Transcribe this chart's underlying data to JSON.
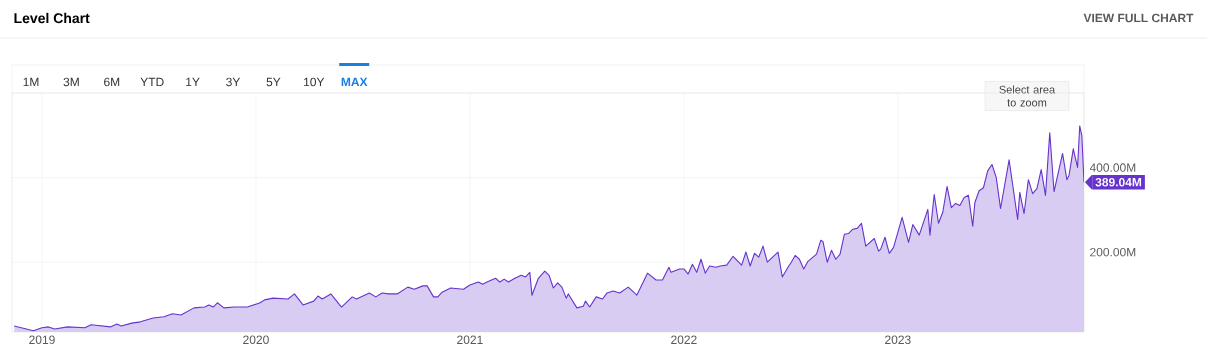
{
  "chart_data": {
    "type": "area",
    "title": "Level Chart",
    "annotations": [
      "VIEW FULL CHART",
      "1M",
      "3M",
      "6M",
      "YTD",
      "1Y",
      "3Y",
      "5Y",
      "10Y",
      "MAX",
      "Select area to zoom",
      {
        "text": "389.04M",
        "x": 2023.87,
        "y": 389.04
      }
    ],
    "x": [
      2018.87,
      2018.96,
      2019.0,
      2019.03,
      2019.06,
      2019.12,
      2019.2,
      2019.23,
      2019.32,
      2019.35,
      2019.37,
      2019.42,
      2019.46,
      2019.52,
      2019.57,
      2019.61,
      2019.65,
      2019.71,
      2019.76,
      2019.78,
      2019.8,
      2019.82,
      2019.85,
      2019.9,
      2019.96,
      2020.02,
      2020.04,
      2020.08,
      2020.15,
      2020.18,
      2020.22,
      2020.27,
      2020.29,
      2020.31,
      2020.35,
      2020.4,
      2020.45,
      2020.47,
      2020.53,
      2020.56,
      2020.59,
      2020.62,
      2020.66,
      2020.71,
      2020.74,
      2020.78,
      2020.8,
      2020.83,
      2020.85,
      2020.87,
      2020.91,
      2020.97,
      2021.0,
      2021.04,
      2021.06,
      2021.08,
      2021.12,
      2021.14,
      2021.16,
      2021.18,
      2021.21,
      2021.24,
      2021.26,
      2021.28,
      2021.29,
      2021.32,
      2021.35,
      2021.37,
      2021.39,
      2021.41,
      2021.43,
      2021.45,
      2021.46,
      2021.5,
      2021.53,
      2021.54,
      2021.56,
      2021.59,
      2021.62,
      2021.64,
      2021.67,
      2021.7,
      2021.74,
      2021.78,
      2021.83,
      2021.87,
      2021.9,
      2021.93,
      2021.94,
      2021.98,
      2022.0,
      2022.02,
      2022.04,
      2022.06,
      2022.08,
      2022.1,
      2022.12,
      2022.15,
      2022.17,
      2022.2,
      2022.23,
      2022.27,
      2022.29,
      2022.31,
      2022.33,
      2022.35,
      2022.37,
      2022.39,
      2022.44,
      2022.46,
      2022.49,
      2022.5,
      2022.52,
      2022.54,
      2022.56,
      2022.58,
      2022.62,
      2022.64,
      2022.65,
      2022.67,
      2022.69,
      2022.71,
      2022.73,
      2022.75,
      2022.77,
      2022.79,
      2022.81,
      2022.83,
      2022.85,
      2022.89,
      2022.91,
      2022.92,
      2022.94,
      2022.96,
      2022.98,
      2023.02,
      2023.05,
      2023.07,
      2023.1,
      2023.14,
      2023.15,
      2023.17,
      2023.19,
      2023.21,
      2023.23,
      2023.25,
      2023.27,
      2023.29,
      2023.31,
      2023.33,
      2023.35,
      2023.36,
      2023.38,
      2023.4,
      2023.42,
      2023.44,
      2023.46,
      2023.48,
      2023.52,
      2023.56,
      2023.57,
      2023.59,
      2023.61,
      2023.63,
      2023.65,
      2023.67,
      2023.69,
      2023.71,
      2023.73,
      2023.77,
      2023.79,
      2023.8,
      2023.82,
      2023.84,
      2023.85,
      2023.86,
      2023.87
    ],
    "values": [
      49,
      38,
      45,
      47,
      42,
      47,
      45,
      52,
      47,
      54,
      49,
      56,
      59,
      68,
      71,
      78,
      75,
      92,
      94,
      99,
      94,
      104,
      92,
      94,
      94,
      104,
      111,
      115,
      113,
      125,
      99,
      108,
      120,
      113,
      125,
      94,
      118,
      113,
      127,
      118,
      127,
      125,
      125,
      141,
      136,
      144,
      144,
      118,
      118,
      129,
      139,
      136,
      146,
      153,
      148,
      153,
      162,
      153,
      160,
      153,
      162,
      169,
      165,
      176,
      122,
      162,
      179,
      169,
      139,
      151,
      141,
      115,
      125,
      92,
      96,
      108,
      94,
      118,
      113,
      127,
      132,
      127,
      141,
      122,
      174,
      158,
      158,
      188,
      176,
      184,
      184,
      172,
      195,
      176,
      207,
      174,
      191,
      188,
      191,
      193,
      214,
      193,
      224,
      191,
      221,
      212,
      238,
      200,
      224,
      165,
      191,
      198,
      216,
      207,
      184,
      202,
      219,
      252,
      249,
      200,
      228,
      207,
      219,
      266,
      268,
      278,
      280,
      292,
      238,
      256,
      226,
      231,
      259,
      221,
      235,
      306,
      247,
      289,
      264,
      325,
      264,
      360,
      292,
      318,
      379,
      329,
      339,
      334,
      353,
      358,
      285,
      341,
      369,
      376,
      416,
      431,
      400,
      327,
      442,
      301,
      365,
      315,
      395,
      362,
      374,
      419,
      358,
      506,
      367,
      457,
      395,
      405,
      468,
      424,
      522,
      499,
      389.04
    ],
    "color": "#6633cc",
    "xlim": [
      2018.86,
      2023.87
    ],
    "ylim": [
      35,
      600
    ],
    "xticks": [
      2019,
      2020,
      2021,
      2022,
      2023
    ],
    "yticks": [
      {
        "value": 200,
        "label": "200.00M"
      },
      {
        "value": 400,
        "label": "400.00M"
      }
    ],
    "grid": true
  }
}
